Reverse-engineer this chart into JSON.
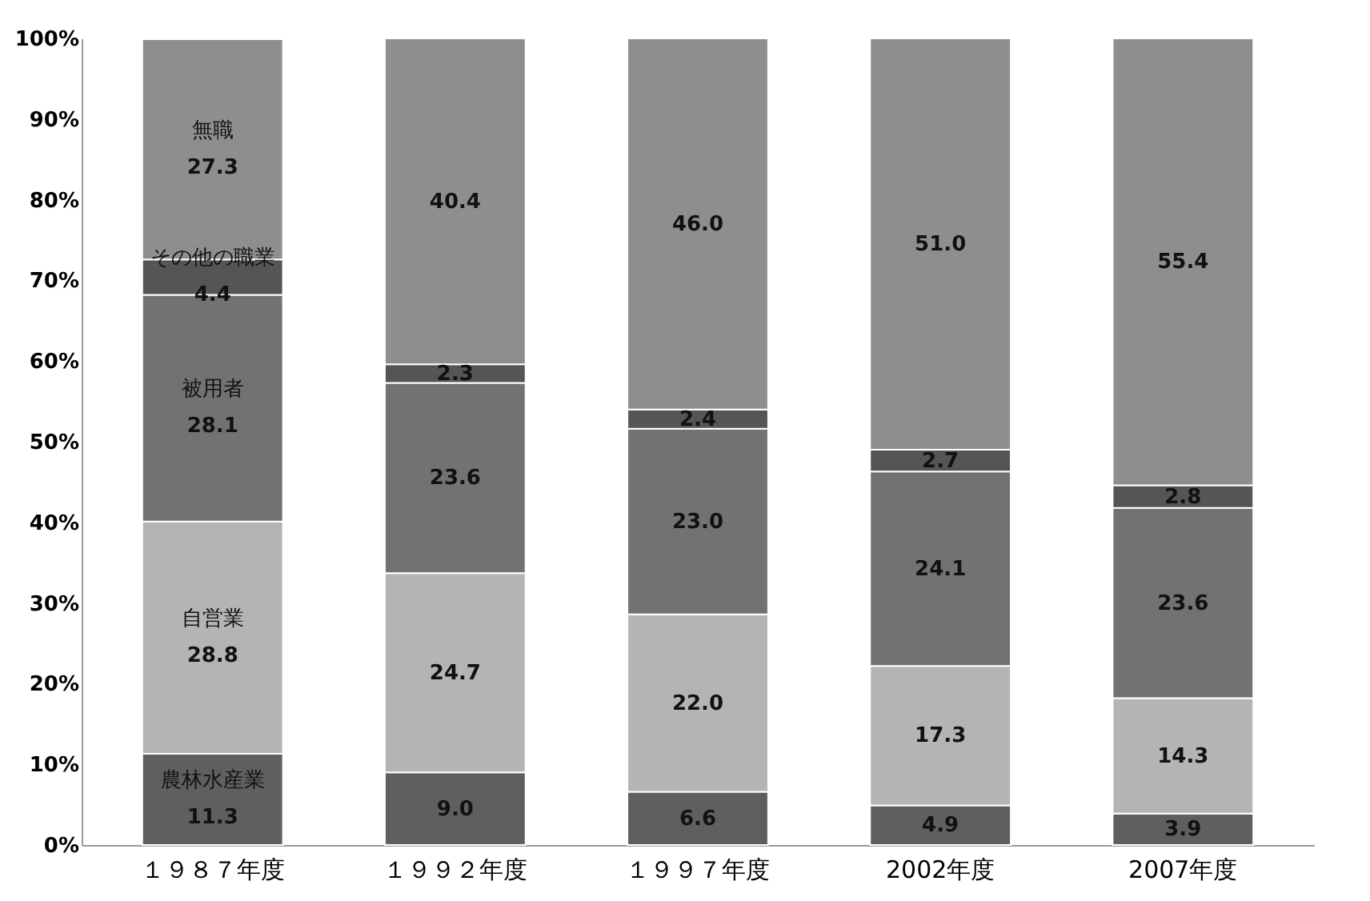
{
  "chart_data": {
    "type": "bar",
    "stacked": true,
    "legend": false,
    "grid": false,
    "categories": [
      "１９８７年度",
      "１９９２年度",
      "１９９７年度",
      "2002年度",
      "2007年度"
    ],
    "series": [
      {
        "name": "農林水産業",
        "color": "#5f5f5f",
        "values": [
          11.3,
          9.0,
          6.6,
          4.9,
          3.9
        ],
        "value_labels": [
          "11.3",
          "9.0",
          "6.6",
          "4.9",
          "3.9"
        ]
      },
      {
        "name": "自営業",
        "color": "#b4b4b4",
        "values": [
          28.8,
          24.7,
          22.0,
          17.3,
          14.3
        ],
        "value_labels": [
          "28.8",
          "24.7",
          "22.0",
          "17.3",
          "14.3"
        ]
      },
      {
        "name": "被用者",
        "color": "#727272",
        "values": [
          28.1,
          23.6,
          23.0,
          24.1,
          23.6
        ],
        "value_labels": [
          "28.1",
          "23.6",
          "23.0",
          "24.1",
          "23.6"
        ]
      },
      {
        "name": "その他の職業",
        "color": "#555555",
        "values": [
          4.4,
          2.3,
          2.4,
          2.7,
          2.8
        ],
        "value_labels": [
          "4.4",
          "2.3",
          "2.4",
          "2.7",
          "2.8"
        ]
      },
      {
        "name": "無職",
        "color": "#8e8e8e",
        "values": [
          27.3,
          40.4,
          46.0,
          51.0,
          55.4
        ],
        "value_labels": [
          "27.3",
          "40.4",
          "46.0",
          "51.0",
          "55.4"
        ]
      }
    ],
    "ylim": [
      0,
      100
    ],
    "yticks": [
      {
        "value": 0,
        "label": "0%"
      },
      {
        "value": 10,
        "label": "10%"
      },
      {
        "value": 20,
        "label": "20%"
      },
      {
        "value": 30,
        "label": "30%"
      },
      {
        "value": 40,
        "label": "40%"
      },
      {
        "value": 50,
        "label": "50%"
      },
      {
        "value": 60,
        "label": "60%"
      },
      {
        "value": 70,
        "label": "70%"
      },
      {
        "value": 80,
        "label": "80%"
      },
      {
        "value": 90,
        "label": "90%"
      },
      {
        "value": 100,
        "label": "100%"
      }
    ]
  }
}
